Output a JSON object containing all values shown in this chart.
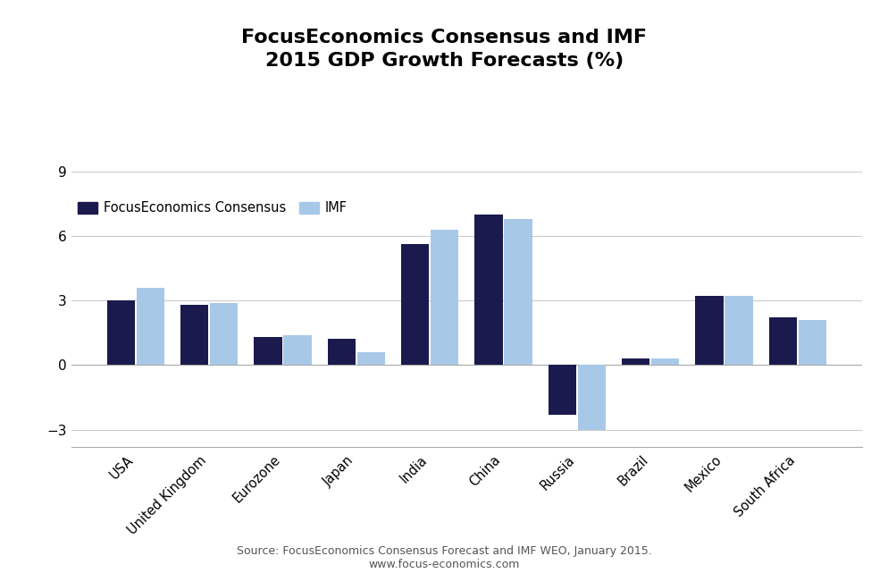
{
  "title": "FocusEconomics Consensus and IMF\n2015 GDP Growth Forecasts (%)",
  "categories": [
    "USA",
    "United Kingdom",
    "Eurozone",
    "Japan",
    "India",
    "China",
    "Russia",
    "Brazil",
    "Mexico",
    "South Africa"
  ],
  "focus_economics": [
    3.0,
    2.8,
    1.3,
    1.2,
    5.6,
    7.0,
    -2.3,
    0.3,
    3.2,
    2.2
  ],
  "imf": [
    3.6,
    2.9,
    1.4,
    0.6,
    6.3,
    6.8,
    -3.0,
    0.3,
    3.2,
    2.1
  ],
  "bar_color_focus": "#1a1a4e",
  "bar_color_imf": "#a8c8e8",
  "ylim": [
    -3.8,
    9.5
  ],
  "yticks": [
    -3,
    0,
    3,
    6,
    9
  ],
  "source_text": "Source: FocusEconomics Consensus Forecast and IMF WEO, January 2015.\nwww.focus-economics.com",
  "legend_labels": [
    "FocusEconomics Consensus",
    "IMF"
  ],
  "background_color": "#ffffff",
  "grid_color": "#cccccc"
}
